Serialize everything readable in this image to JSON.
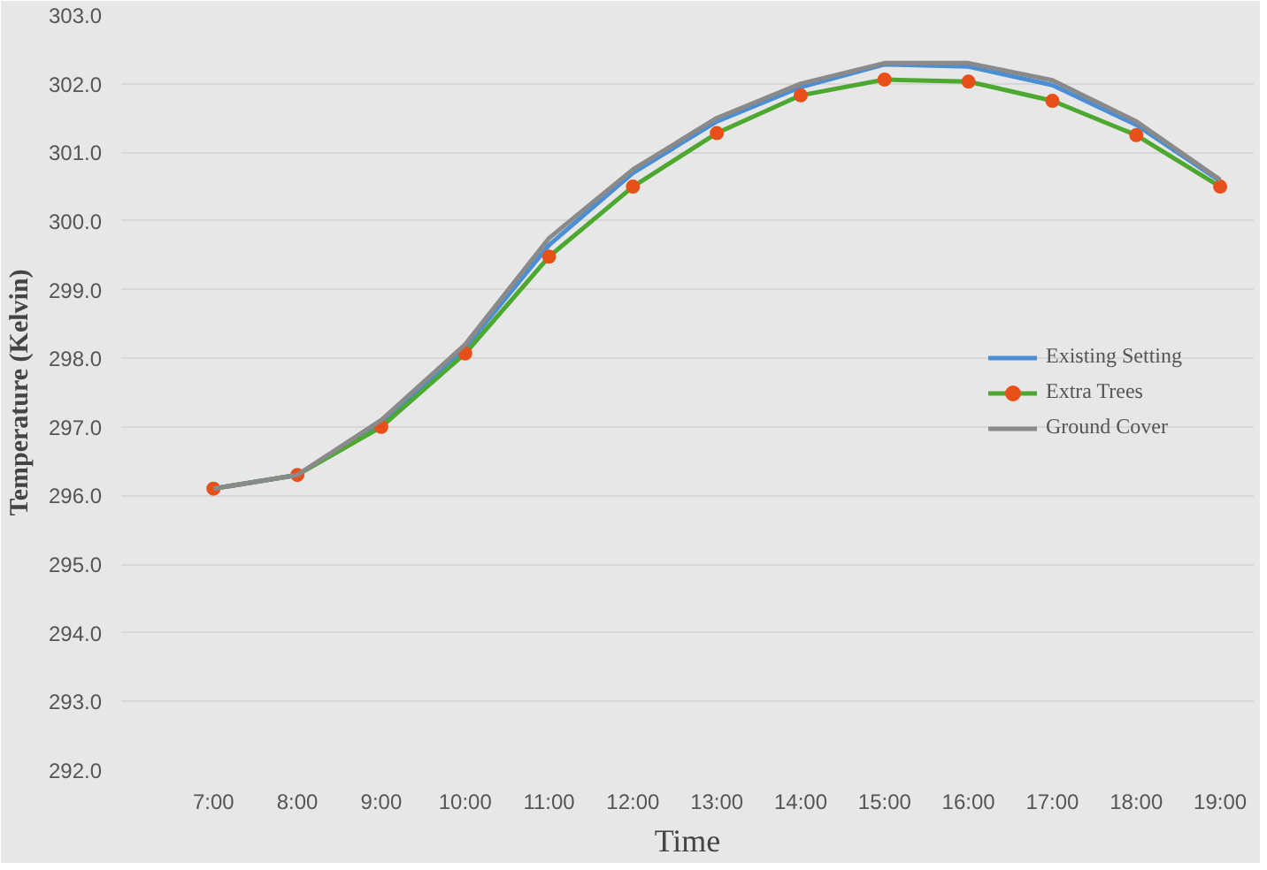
{
  "chart_data": {
    "type": "line",
    "xlabel": "Time",
    "ylabel": "Temperature (Kelvin)",
    "x": [
      7,
      8,
      9,
      10,
      11,
      12,
      13,
      14,
      15,
      16,
      17,
      18,
      19
    ],
    "xlim": [
      5.9,
      19.4
    ],
    "xticks": [
      {
        "value": 7,
        "label": "7:00"
      },
      {
        "value": 8,
        "label": "8:00"
      },
      {
        "value": 9,
        "label": "9:00"
      },
      {
        "value": 10,
        "label": "10:00"
      },
      {
        "value": 11,
        "label": "11:00"
      },
      {
        "value": 12,
        "label": "12:00"
      },
      {
        "value": 13,
        "label": "13:00"
      },
      {
        "value": 14,
        "label": "14:00"
      },
      {
        "value": 15,
        "label": "15:00"
      },
      {
        "value": 16,
        "label": "16:00"
      },
      {
        "value": 17,
        "label": "17:00"
      },
      {
        "value": 18,
        "label": "18:00"
      },
      {
        "value": 19,
        "label": "19:00"
      }
    ],
    "ylim": [
      292,
      303
    ],
    "yticks": [
      {
        "value": 292,
        "label": "292.0"
      },
      {
        "value": 293,
        "label": "293.0"
      },
      {
        "value": 294,
        "label": "294.0"
      },
      {
        "value": 295,
        "label": "295.0"
      },
      {
        "value": 296,
        "label": "296.0"
      },
      {
        "value": 297,
        "label": "297.0"
      },
      {
        "value": 298,
        "label": "298.0"
      },
      {
        "value": 299,
        "label": "299.0"
      },
      {
        "value": 300,
        "label": "300.0"
      },
      {
        "value": 301,
        "label": "301.0"
      },
      {
        "value": 302,
        "label": "302.0"
      },
      {
        "value": 303,
        "label": "303.0"
      }
    ],
    "grid": "y",
    "legend": "right",
    "series": [
      {
        "name": "Existing Setting",
        "color": "#4a8fd6",
        "marker": "none",
        "values": [
          296.1,
          296.3,
          297.05,
          298.15,
          299.65,
          300.7,
          301.45,
          301.95,
          302.28,
          302.25,
          301.98,
          301.4,
          300.58
        ]
      },
      {
        "name": "Extra Trees",
        "color": "#4ca82e",
        "marker": "circle",
        "colors": [
          "#e8501a",
          "#e8501a",
          "#e8501a",
          "#e8501a",
          "#e8501a",
          "#e8501a",
          "#e8501a",
          "#e8501a",
          "#e8501a",
          "#e8501a",
          "#e8501a",
          "#e8501a",
          "#e8501a"
        ],
        "values": [
          296.1,
          296.3,
          297.0,
          298.07,
          299.48,
          300.5,
          301.28,
          301.83,
          302.06,
          302.03,
          301.75,
          301.25,
          300.5
        ]
      },
      {
        "name": "Ground Cover",
        "color": "#8a8a8a",
        "marker": "none",
        "values": [
          296.1,
          296.3,
          297.1,
          298.2,
          299.75,
          300.75,
          301.5,
          302.0,
          302.3,
          302.3,
          302.05,
          301.45,
          300.6
        ]
      }
    ]
  }
}
